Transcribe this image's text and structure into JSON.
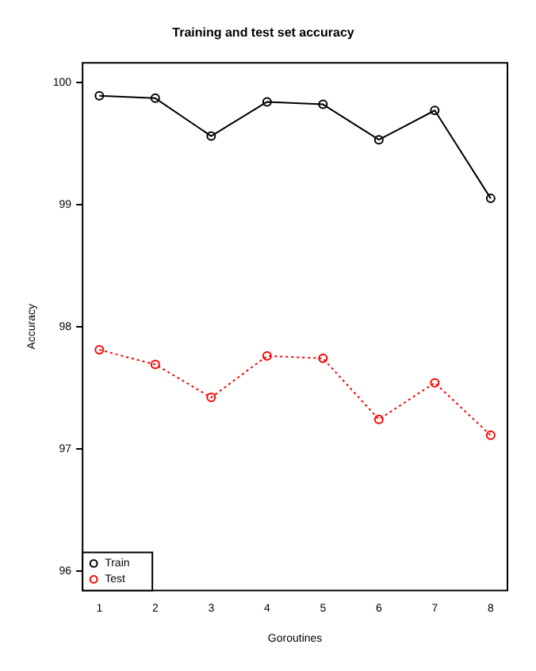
{
  "chart_data": {
    "type": "line",
    "title": "Training and test set accuracy",
    "xlabel": "Goroutines",
    "ylabel": "Accuracy",
    "x": [
      1,
      2,
      3,
      4,
      5,
      6,
      7,
      8
    ],
    "series": [
      {
        "name": "Train",
        "color": "#000000",
        "line_style": "solid",
        "values": [
          99.89,
          99.87,
          99.56,
          99.84,
          99.82,
          99.53,
          99.77,
          99.05
        ]
      },
      {
        "name": "Test",
        "color": "#ff0000",
        "line_style": "dotted",
        "values": [
          97.81,
          97.69,
          97.42,
          97.76,
          97.74,
          97.24,
          97.54,
          97.11
        ]
      }
    ],
    "xlim": [
      0.7,
      8.3
    ],
    "xticks": [
      1,
      2,
      3,
      4,
      5,
      6,
      7,
      8
    ],
    "ylim": [
      95.84,
      100.16
    ],
    "yticks": [
      96,
      97,
      98,
      99,
      100
    ],
    "grid": false,
    "legend": "bottom left",
    "marker": "circle"
  }
}
